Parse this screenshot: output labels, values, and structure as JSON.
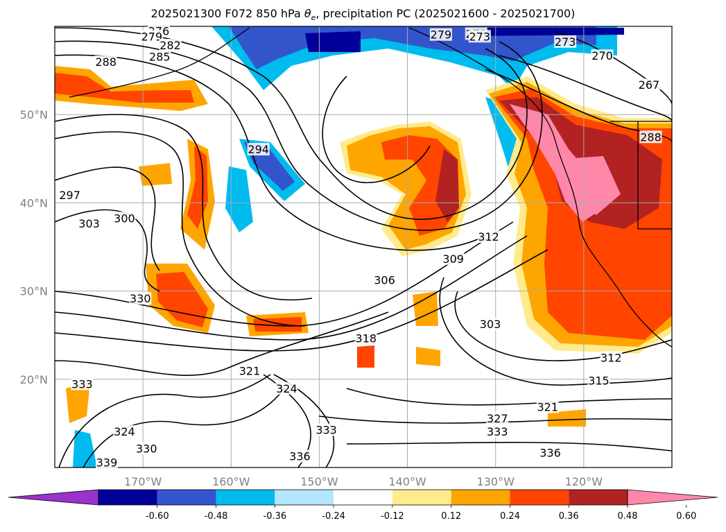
{
  "title": {
    "prefix": "2025021300 F072 850 hPa ",
    "symbol": "θ",
    "subscript": "e",
    "suffix": ", precipitation PC (2025021600 - 2025021700)"
  },
  "map": {
    "projection": "PlateCarree",
    "lon_range": [
      -180,
      -110
    ],
    "lat_range": [
      10,
      60
    ],
    "lat_ticks": [
      {
        "lat": 50,
        "label": "50°N"
      },
      {
        "lat": 40,
        "label": "40°N"
      },
      {
        "lat": 30,
        "label": "30°N"
      },
      {
        "lat": 20,
        "label": "20°N"
      }
    ],
    "lon_ticks": [
      {
        "lon": -170,
        "label": "170°W"
      },
      {
        "lon": -160,
        "label": "160°W"
      },
      {
        "lon": -150,
        "label": "150°W"
      },
      {
        "lon": -140,
        "label": "140°W"
      },
      {
        "lon": -130,
        "label": "130°W"
      },
      {
        "lon": -120,
        "label": "120°W"
      }
    ],
    "gridlines": true,
    "contour_field": "850 hPa theta-e",
    "contour_labels": [
      {
        "value": "276",
        "lon": -168.2,
        "lat": 59.4
      },
      {
        "value": "279",
        "lon": -169.0,
        "lat": 58.8
      },
      {
        "value": "282",
        "lon": -166.9,
        "lat": 57.8
      },
      {
        "value": "285",
        "lon": -168.1,
        "lat": 56.5
      },
      {
        "value": "288",
        "lon": -174.2,
        "lat": 55.9
      },
      {
        "value": "294",
        "lon": -156.9,
        "lat": 46.0
      },
      {
        "value": "297",
        "lon": -178.3,
        "lat": 40.8
      },
      {
        "value": "300",
        "lon": -172.1,
        "lat": 38.2
      },
      {
        "value": "303",
        "lon": -176.1,
        "lat": 37.6
      },
      {
        "value": "330",
        "lon": -170.3,
        "lat": 29.1
      },
      {
        "value": "306",
        "lon": -142.6,
        "lat": 31.2
      },
      {
        "value": "309",
        "lon": -134.8,
        "lat": 33.6
      },
      {
        "value": "312",
        "lon": -130.8,
        "lat": 36.1
      },
      {
        "value": "303",
        "lon": -130.6,
        "lat": 26.2
      },
      {
        "value": "318",
        "lon": -144.7,
        "lat": 24.6
      },
      {
        "value": "321",
        "lon": -157.9,
        "lat": 20.9
      },
      {
        "value": "324",
        "lon": -153.7,
        "lat": 18.9
      },
      {
        "value": "333",
        "lon": -176.9,
        "lat": 19.4
      },
      {
        "value": "324",
        "lon": -172.1,
        "lat": 14.0
      },
      {
        "value": "330",
        "lon": -169.6,
        "lat": 12.1
      },
      {
        "value": "339",
        "lon": -174.1,
        "lat": 10.5
      },
      {
        "value": "333",
        "lon": -149.2,
        "lat": 14.2
      },
      {
        "value": "336",
        "lon": -152.2,
        "lat": 11.2
      },
      {
        "value": "327",
        "lon": -129.8,
        "lat": 15.5
      },
      {
        "value": "333",
        "lon": -129.8,
        "lat": 14.0
      },
      {
        "value": "321",
        "lon": -124.1,
        "lat": 16.8
      },
      {
        "value": "336",
        "lon": -123.8,
        "lat": 11.6
      },
      {
        "value": "312",
        "lon": -116.9,
        "lat": 22.4
      },
      {
        "value": "315",
        "lon": -118.3,
        "lat": 19.8
      },
      {
        "value": "279",
        "lon": -136.2,
        "lat": 59.0
      },
      {
        "value": "279",
        "lon": -132.2,
        "lat": 59.1
      },
      {
        "value": "273",
        "lon": -131.8,
        "lat": 58.8
      },
      {
        "value": "273",
        "lon": -122.1,
        "lat": 58.2
      },
      {
        "value": "270",
        "lon": -117.9,
        "lat": 56.6
      },
      {
        "value": "267",
        "lon": -112.6,
        "lat": 53.3
      },
      {
        "value": "288",
        "lon": -112.4,
        "lat": 47.4
      }
    ],
    "fill_colors": {
      "low_3": "#9933cc",
      "low_2": "#000099",
      "low_1": "#3355cc",
      "low_0": "#00bbee",
      "neg_light": "#b3e5fc",
      "pos_light": "#ffeb8c",
      "pos_1": "#ffa500",
      "pos_2": "#ff4500",
      "pos_3": "#b22222",
      "pos_4": "#ff88aa"
    }
  },
  "colorbar": {
    "colors": [
      "#9933cc",
      "#000099",
      "#3355cc",
      "#00bbee",
      "#b3e5fc",
      "#ffffff",
      "#ffeb8c",
      "#ffa500",
      "#ff4500",
      "#b22222",
      "#ff88aa"
    ],
    "boundaries": [
      "-0.60",
      "-0.48",
      "-0.36",
      "-0.24",
      "-0.12",
      "0.12",
      "0.24",
      "0.36",
      "0.48",
      "0.60"
    ],
    "extend": "both"
  }
}
